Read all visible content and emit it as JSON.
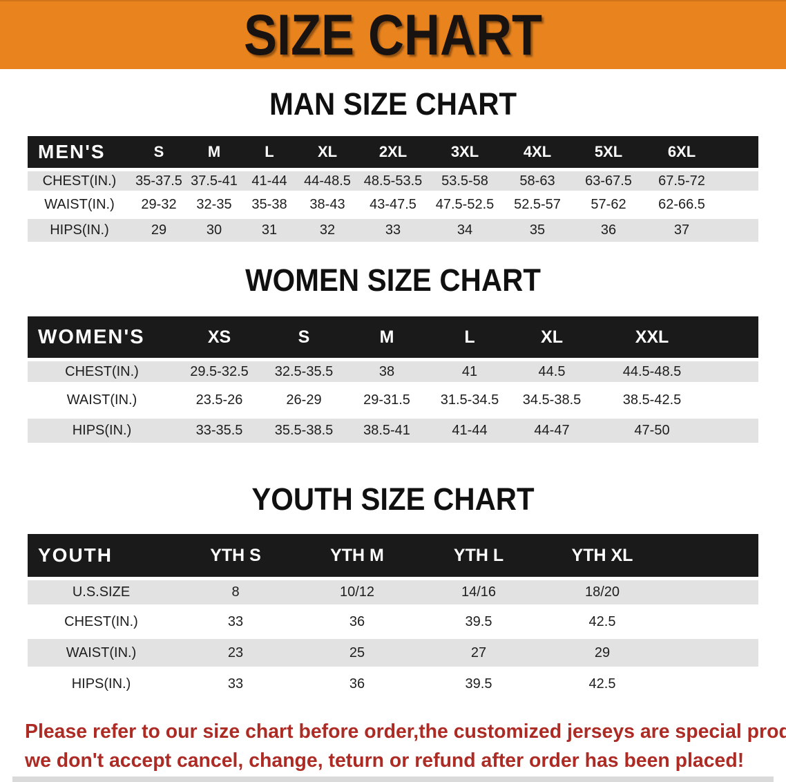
{
  "banner": {
    "title": "SIZE CHART",
    "bg_color": "#E8831E"
  },
  "colors": {
    "header_bar": "#1A1A1A",
    "row_stripe": "#E2E2E2",
    "footer_text": "#AC2B24"
  },
  "sections": {
    "men": {
      "heading": "MAN SIZE CHART",
      "table": {
        "label": "MEN'S",
        "columns": [
          "S",
          "M",
          "L",
          "XL",
          "2XL",
          "3XL",
          "4XL",
          "5XL",
          "6XL"
        ],
        "rows": [
          {
            "label": "CHEST(IN.)",
            "values": [
              "35-37.5",
              "37.5-41",
              "41-44",
              "44-48.5",
              "48.5-53.5",
              "53.5-58",
              "58-63",
              "63-67.5",
              "67.5-72"
            ]
          },
          {
            "label": "WAIST(IN.)",
            "values": [
              "29-32",
              "32-35",
              "35-38",
              "38-43",
              "43-47.5",
              "47.5-52.5",
              "52.5-57",
              "57-62",
              "62-66.5"
            ]
          },
          {
            "label": "HIPS(IN.)",
            "values": [
              "29",
              "30",
              "31",
              "32",
              "33",
              "34",
              "35",
              "36",
              "37"
            ]
          }
        ]
      }
    },
    "women": {
      "heading": "WOMEN SIZE CHART",
      "table": {
        "label": "WOMEN'S",
        "columns": [
          "XS",
          "S",
          "M",
          "L",
          "XL",
          "XXL"
        ],
        "rows": [
          {
            "label": "CHEST(IN.)",
            "values": [
              "29.5-32.5",
              "32.5-35.5",
              "38",
              "41",
              "44.5",
              "44.5-48.5"
            ]
          },
          {
            "label": "WAIST(IN.)",
            "values": [
              "23.5-26",
              "26-29",
              "29-31.5",
              "31.5-34.5",
              "34.5-38.5",
              "38.5-42.5"
            ]
          },
          {
            "label": "HIPS(IN.)",
            "values": [
              "33-35.5",
              "35.5-38.5",
              "38.5-41",
              "41-44",
              "44-47",
              "47-50"
            ]
          }
        ]
      }
    },
    "youth": {
      "heading": "YOUTH SIZE CHART",
      "table": {
        "label": "YOUTH",
        "columns": [
          "YTH S",
          "YTH M",
          "YTH L",
          "YTH XL"
        ],
        "rows": [
          {
            "label": "U.S.SIZE",
            "values": [
              "8",
              "10/12",
              "14/16",
              "18/20"
            ]
          },
          {
            "label": "CHEST(IN.)",
            "values": [
              "33",
              "36",
              "39.5",
              "42.5"
            ]
          },
          {
            "label": "WAIST(IN.)",
            "values": [
              "23",
              "25",
              "27",
              "29"
            ]
          },
          {
            "label": "HIPS(IN.)",
            "values": [
              "33",
              "36",
              "39.5",
              "42.5"
            ]
          }
        ]
      }
    }
  },
  "footer": {
    "lines": [
      "Please refer to our size chart before order,the customized jerseys are special products,",
      "we don't accept cancel, change, teturn or refund after order has been placed!"
    ]
  }
}
